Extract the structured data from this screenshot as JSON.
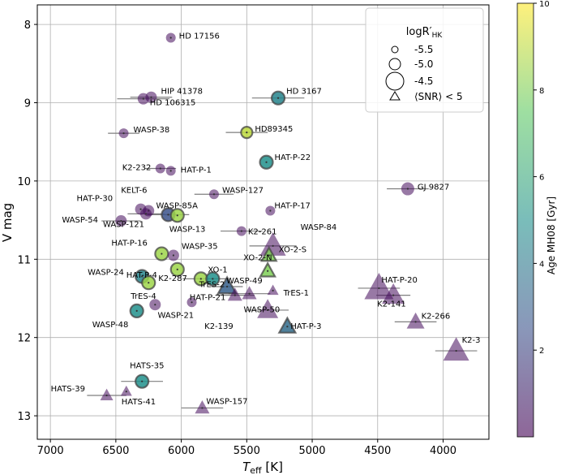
{
  "chart_data": {
    "type": "scatter",
    "xlabel_main": "T",
    "xlabel_sub": "eff",
    "xlabel_unit": " [K]",
    "ylabel": "V mag",
    "xlim": [
      7100,
      3650
    ],
    "ylim": [
      13.3,
      7.75
    ],
    "xticks": [
      7000,
      6500,
      6000,
      5500,
      5000,
      4500,
      4000
    ],
    "yticks": [
      8,
      9,
      10,
      11,
      12,
      13
    ],
    "colorbar": {
      "label": "Age MH08 [Gyr]",
      "range": [
        0,
        10
      ],
      "ticks": [
        2,
        4,
        6,
        8,
        10
      ],
      "colormap": [
        "#440154",
        "#3b528b",
        "#21918c",
        "#5ec962",
        "#fde725"
      ]
    },
    "legend": {
      "title_main": "logR′",
      "title_sub": "HK",
      "entries": [
        "-5.5",
        "-5.0",
        "-4.5",
        "⟨SNR⟩ < 5"
      ]
    },
    "points": [
      {
        "name": "HD 17156",
        "teff": 6080,
        "vmag": 8.17,
        "err": 0,
        "marker": "circle",
        "size": 6,
        "age": 0.3
      },
      {
        "name": "HIP 41378",
        "teff": 6230,
        "vmag": 8.93,
        "err": 160,
        "marker": "circle",
        "size": 7,
        "age": 0.3
      },
      {
        "name": "HD 106315",
        "teff": 6290,
        "vmag": 8.95,
        "err": 200,
        "marker": "circle",
        "size": 7,
        "age": 0.3
      },
      {
        "name": "HD 3167",
        "teff": 5260,
        "vmag": 8.94,
        "err": 200,
        "marker": "circle",
        "size": 8,
        "age": 4.5
      },
      {
        "name": "WASP-38",
        "teff": 6440,
        "vmag": 9.39,
        "err": 120,
        "marker": "circle",
        "size": 6,
        "age": 0.3
      },
      {
        "name": "HD89345",
        "teff": 5500,
        "vmag": 9.38,
        "err": 160,
        "marker": "circle",
        "size": 7,
        "age": 9.0
      },
      {
        "name": "HAT-P-22",
        "teff": 5350,
        "vmag": 9.76,
        "err": 0,
        "marker": "circle",
        "size": 8,
        "age": 5.0
      },
      {
        "name": "K2-232",
        "teff": 6160,
        "vmag": 9.84,
        "err": 120,
        "marker": "circle",
        "size": 6,
        "age": 0.3
      },
      {
        "name": "HAT-P-1",
        "teff": 6080,
        "vmag": 9.87,
        "err": 0,
        "marker": "circle",
        "size": 6,
        "age": 0.3
      },
      {
        "name": "GJ 9827",
        "teff": 4270,
        "vmag": 10.1,
        "err": 160,
        "marker": "circle",
        "size": 8,
        "age": 0.3
      },
      {
        "name": "WASP-127",
        "teff": 5750,
        "vmag": 10.17,
        "err": 150,
        "marker": "circle",
        "size": 6,
        "age": 0.3
      },
      {
        "name": "HAT-P-30",
        "teff": 6310,
        "vmag": 10.36,
        "err": 0,
        "marker": "circle",
        "size": 7,
        "age": 0.3
      },
      {
        "name": "KELT-6",
        "teff": 6250,
        "vmag": 10.38,
        "err": 0,
        "marker": "circle",
        "size": 7,
        "age": 0.3
      },
      {
        "name": "WASP-85A",
        "teff": 6100,
        "vmag": 10.43,
        "err": 160,
        "marker": "circle",
        "size": 8,
        "age": 2.5
      },
      {
        "name": "WASP-121",
        "teff": 6270,
        "vmag": 10.42,
        "err": 140,
        "marker": "circle",
        "size": 7,
        "age": 0.3
      },
      {
        "name": "WASP-13",
        "teff": 6030,
        "vmag": 10.44,
        "err": 0,
        "marker": "circle",
        "size": 8,
        "age": 8.5
      },
      {
        "name": "HAT-P-17",
        "teff": 5320,
        "vmag": 10.38,
        "err": 0,
        "marker": "circle",
        "size": 6,
        "age": 0.3
      },
      {
        "name": "WASP-54",
        "teff": 6460,
        "vmag": 10.51,
        "err": 150,
        "marker": "circle",
        "size": 7,
        "age": 0.3
      },
      {
        "name": "K2-261",
        "teff": 5540,
        "vmag": 10.64,
        "err": 160,
        "marker": "circle",
        "size": 6,
        "age": 0.3
      },
      {
        "name": "WASP-84",
        "teff": 5300,
        "vmag": 10.83,
        "err": 180,
        "marker": "triangle",
        "size": 16,
        "age": 0.3
      },
      {
        "name": "XO-2-S",
        "teff": 5330,
        "vmag": 10.95,
        "err": 0,
        "marker": "triangle",
        "size": 9,
        "age": 8.0
      },
      {
        "name": "HAT-P-16",
        "teff": 6150,
        "vmag": 10.93,
        "err": 0,
        "marker": "circle",
        "size": 8,
        "age": 8.5
      },
      {
        "name": "WASP-35",
        "teff": 6060,
        "vmag": 10.95,
        "err": 0,
        "marker": "circle",
        "size": 7,
        "age": 0.3
      },
      {
        "name": "HAT-P-4",
        "teff": 6030,
        "vmag": 11.13,
        "err": 0,
        "marker": "circle",
        "size": 8,
        "age": 8.5
      },
      {
        "name": "TrES-2",
        "teff": 5850,
        "vmag": 11.25,
        "err": 140,
        "marker": "circle",
        "size": 8,
        "age": 8.5
      },
      {
        "name": "XO-2-N",
        "teff": 5340,
        "vmag": 11.15,
        "err": 0,
        "marker": "triangle",
        "size": 9,
        "age": 8.0
      },
      {
        "name": "WASP-24",
        "teff": 6300,
        "vmag": 11.22,
        "err": 0,
        "marker": "circle",
        "size": 8,
        "age": 4.5
      },
      {
        "name": "K2-287",
        "teff": 6250,
        "vmag": 11.3,
        "err": 0,
        "marker": "circle",
        "size": 8,
        "age": 8.5
      },
      {
        "name": "XO-1",
        "teff": 5760,
        "vmag": 11.25,
        "err": 120,
        "marker": "circle",
        "size": 8,
        "age": 5.0
      },
      {
        "name": "WASP-49",
        "teff": 5650,
        "vmag": 11.35,
        "err": 120,
        "marker": "triangle",
        "size": 11,
        "age": 3.0
      },
      {
        "name": "HAT-P-21",
        "teff": 5590,
        "vmag": 11.46,
        "err": 150,
        "marker": "triangle",
        "size": 9,
        "age": 0.3
      },
      {
        "name": "WASP-50",
        "teff": 5480,
        "vmag": 11.44,
        "err": 160,
        "marker": "triangle",
        "size": 9,
        "age": 0.3
      },
      {
        "name": "TrES-1",
        "teff": 5300,
        "vmag": 11.4,
        "err": 0,
        "marker": "triangle",
        "size": 7,
        "age": 0.3
      },
      {
        "name": "HAT-P-20",
        "teff": 4490,
        "vmag": 11.37,
        "err": 160,
        "marker": "triangle",
        "size": 18,
        "age": 0.3
      },
      {
        "name": "K2-141",
        "teff": 4380,
        "vmag": 11.46,
        "err": 130,
        "marker": "triangle",
        "size": 14,
        "age": 0.3
      },
      {
        "name": "TrES-4",
        "teff": 6200,
        "vmag": 11.58,
        "err": 0,
        "marker": "circle",
        "size": 7,
        "age": 0.3
      },
      {
        "name": "WASP-21",
        "teff": 5920,
        "vmag": 11.55,
        "err": 0,
        "marker": "circle",
        "size": 6,
        "age": 0.3
      },
      {
        "name": "WASP-48",
        "teff": 6340,
        "vmag": 11.66,
        "err": 0,
        "marker": "circle",
        "size": 8,
        "age": 5.0
      },
      {
        "name": "K2-139",
        "teff": 5340,
        "vmag": 11.65,
        "err": 160,
        "marker": "triangle",
        "size": 13,
        "age": 0.3
      },
      {
        "name": "HAT-P-3",
        "teff": 5190,
        "vmag": 11.86,
        "err": 0,
        "marker": "triangle",
        "size": 10,
        "age": 3.5
      },
      {
        "name": "K2-266",
        "teff": 4210,
        "vmag": 11.8,
        "err": 160,
        "marker": "triangle",
        "size": 11,
        "age": 0.3
      },
      {
        "name": "K2-3",
        "teff": 3900,
        "vmag": 12.17,
        "err": 160,
        "marker": "triangle",
        "size": 16,
        "age": 0.3
      },
      {
        "name": "HATS-35",
        "teff": 6300,
        "vmag": 12.56,
        "err": 160,
        "marker": "circle",
        "size": 8,
        "age": 5.0
      },
      {
        "name": "HATS-39",
        "teff": 6570,
        "vmag": 12.74,
        "err": 150,
        "marker": "triangle",
        "size": 8,
        "age": 0.3
      },
      {
        "name": "HATS-41",
        "teff": 6420,
        "vmag": 12.69,
        "err": 0,
        "marker": "triangle",
        "size": 7,
        "age": 0.3
      },
      {
        "name": "WASP-157",
        "teff": 5840,
        "vmag": 12.9,
        "err": 160,
        "marker": "triangle",
        "size": 9,
        "age": 0.3
      }
    ]
  }
}
